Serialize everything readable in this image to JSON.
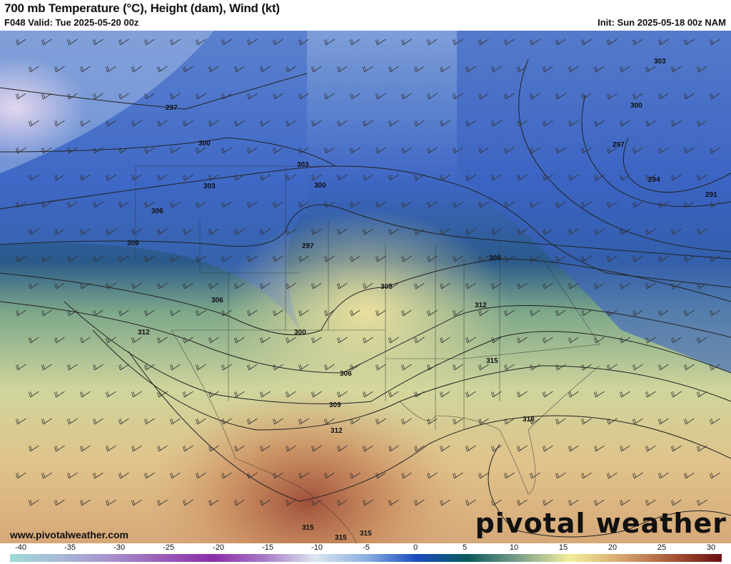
{
  "header": {
    "title": "700 mb Temperature (°C), Height (dam), Wind (kt)",
    "valid": "F048 Valid: Tue 2025-05-20 00z",
    "init": "Init: Sun 2025-05-18 00z NAM"
  },
  "map": {
    "contour_labels": [
      "297",
      "300",
      "303",
      "303",
      "300",
      "306",
      "309",
      "297",
      "300",
      "303",
      "306",
      "309",
      "312",
      "309",
      "312",
      "315",
      "318",
      "312",
      "306",
      "300",
      "297",
      "294",
      "291",
      "303",
      "315",
      "315",
      "315"
    ],
    "colors": {
      "cold": "#3c64c8",
      "cool": "#8fb0e0",
      "transition": "#2f6e6a",
      "mild": "#a8c08a",
      "warm": "#ecd99a",
      "hot": "#c98a5a",
      "hottest": "#9c4a34",
      "purple": "#d8c8e8"
    }
  },
  "branding": {
    "url": "www.pivotalweather.com",
    "logo": "pivotal weather"
  },
  "colorbar": {
    "ticks": [
      "-40",
      "-35",
      "-30",
      "-25",
      "-20",
      "-15",
      "-10",
      "-5",
      "0",
      "5",
      "10",
      "15",
      "20",
      "25",
      "30"
    ],
    "colors": [
      "#9edcd6",
      "#a8b8d8",
      "#a890cc",
      "#9a5cb8",
      "#8a2ea8",
      "#a87ac8",
      "#dce6f0",
      "#8cb0e0",
      "#1a4cc0",
      "#0c5a5c",
      "#7aa08a",
      "#f2ee9c",
      "#d8a870",
      "#a85838",
      "#6a0e0e"
    ]
  }
}
